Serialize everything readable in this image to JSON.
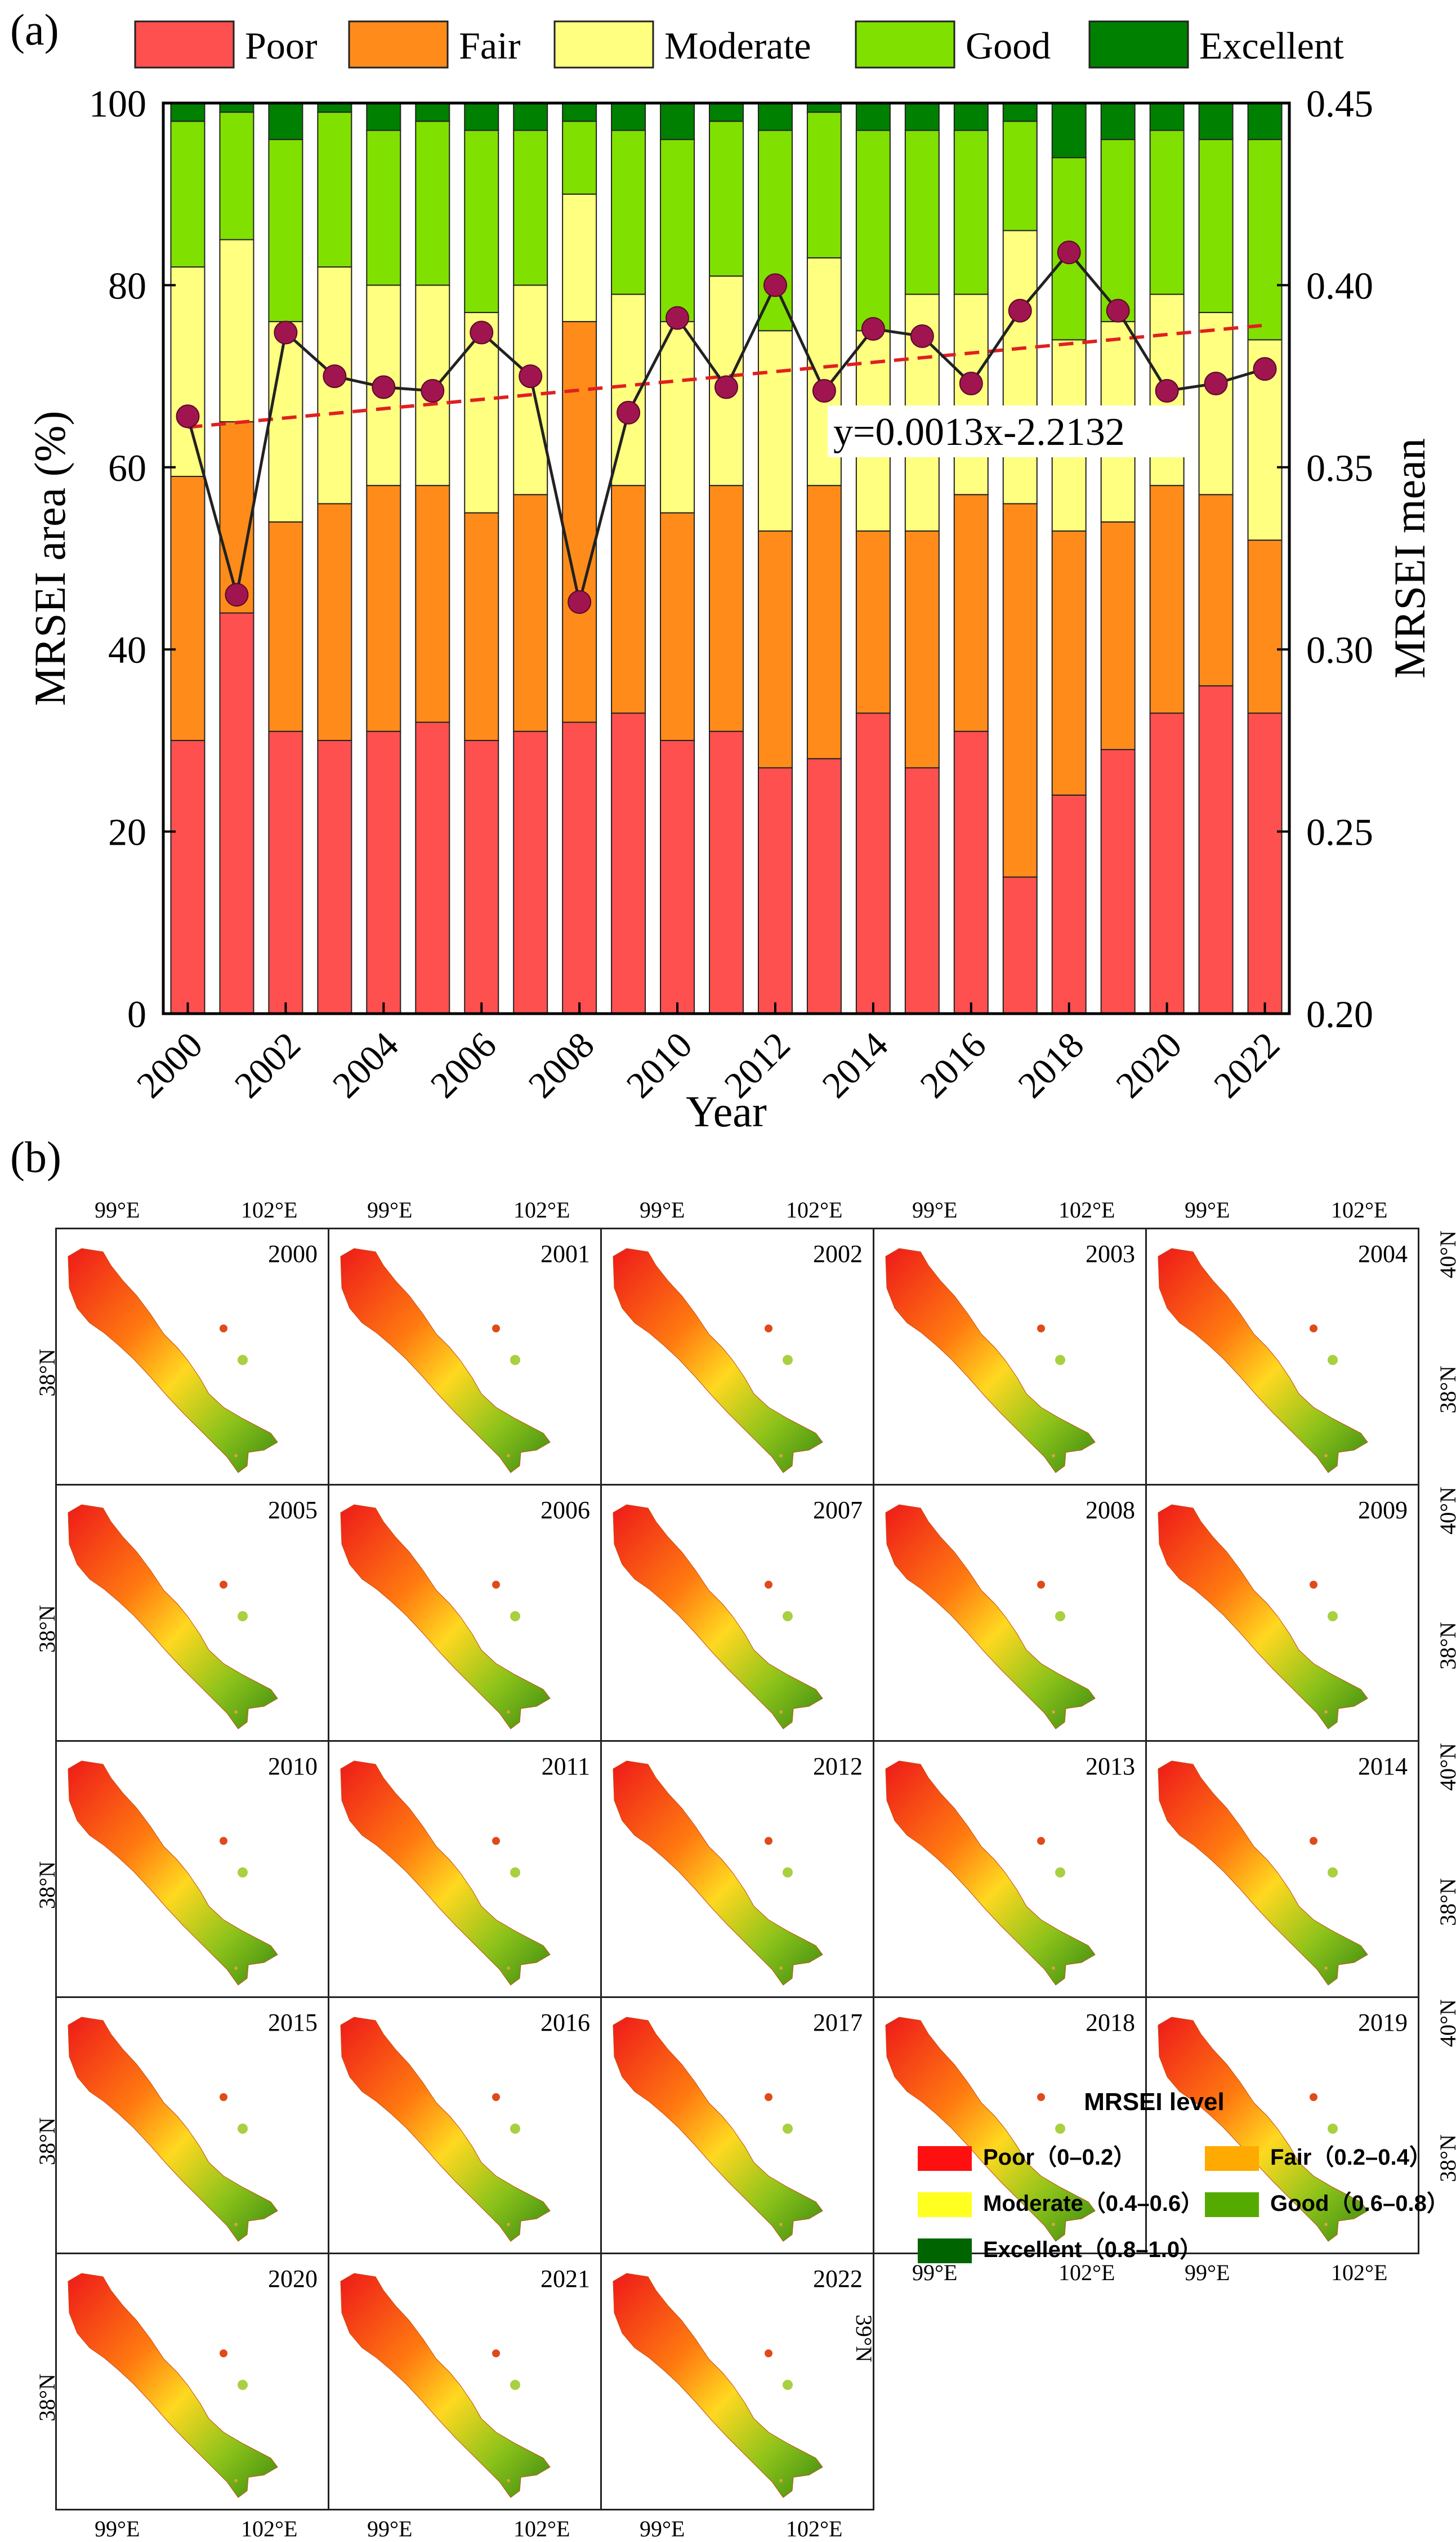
{
  "panel_a_label": "(a)",
  "panel_b_label": "(b)",
  "chart_data": {
    "type": "bar",
    "stacked": true,
    "categories": [
      "2000",
      "2001",
      "2002",
      "2003",
      "2004",
      "2005",
      "2006",
      "2007",
      "2008",
      "2009",
      "2010",
      "2011",
      "2012",
      "2013",
      "2014",
      "2015",
      "2016",
      "2017",
      "2018",
      "2019",
      "2020",
      "2021",
      "2022"
    ],
    "x_tick_labels": [
      "2000",
      "2002",
      "2004",
      "2006",
      "2008",
      "2010",
      "2012",
      "2014",
      "2016",
      "2018",
      "2020",
      "2022"
    ],
    "xlabel": "Year",
    "ylabel": "MRSEI area (%)",
    "ylim": [
      0,
      100
    ],
    "y_ticks": [
      "0",
      "20",
      "40",
      "60",
      "80",
      "100"
    ],
    "y2label": "MRSEI mean",
    "y2lim": [
      0.2,
      0.45
    ],
    "y2_ticks": [
      "0.20",
      "0.25",
      "0.30",
      "0.35",
      "0.40",
      "0.45"
    ],
    "legend_position": "top",
    "series": [
      {
        "name": "Poor",
        "color": "#ff5050",
        "values": [
          30,
          44,
          31,
          30,
          31,
          32,
          30,
          31,
          32,
          33,
          30,
          31,
          27,
          28,
          33,
          27,
          31,
          15,
          24,
          29,
          33,
          36,
          33
        ]
      },
      {
        "name": "Fair",
        "color": "#ff8c1a",
        "values": [
          29,
          21,
          23,
          26,
          27,
          26,
          25,
          26,
          44,
          25,
          25,
          27,
          26,
          30,
          20,
          26,
          26,
          41,
          29,
          25,
          25,
          21,
          19
        ]
      },
      {
        "name": "Moderate",
        "color": "#ffff80",
        "values": [
          23,
          20,
          22,
          26,
          22,
          22,
          22,
          23,
          14,
          21,
          21,
          23,
          22,
          25,
          22,
          26,
          22,
          30,
          21,
          22,
          21,
          20,
          22
        ]
      },
      {
        "name": "Good",
        "color": "#80e000",
        "values": [
          16,
          14,
          20,
          17,
          17,
          18,
          20,
          17,
          8,
          18,
          20,
          17,
          22,
          16,
          22,
          18,
          18,
          12,
          20,
          20,
          18,
          19,
          22
        ]
      },
      {
        "name": "Excellent",
        "color": "#008000",
        "values": [
          2,
          1,
          4,
          1,
          3,
          2,
          3,
          3,
          2,
          3,
          4,
          2,
          3,
          1,
          3,
          3,
          3,
          2,
          6,
          4,
          3,
          4,
          4
        ]
      }
    ],
    "mean_line": {
      "name": "MRSEI mean",
      "color": "#222222",
      "marker_color": "#a0154f",
      "values": [
        0.364,
        0.315,
        0.387,
        0.375,
        0.372,
        0.371,
        0.387,
        0.375,
        0.313,
        0.365,
        0.391,
        0.372,
        0.4,
        0.371,
        0.388,
        0.386,
        0.373,
        0.393,
        0.409,
        0.393,
        0.371,
        0.373,
        0.377
      ]
    },
    "trend_line": {
      "label": "y=0.0013x-2.2132",
      "color": "#e02020",
      "start_value": 0.361,
      "end_value": 0.389
    }
  },
  "maps": {
    "years": [
      "2000",
      "2001",
      "2002",
      "2003",
      "2004",
      "2005",
      "2006",
      "2007",
      "2008",
      "2009",
      "2010",
      "2011",
      "2012",
      "2013",
      "2014",
      "2015",
      "2016",
      "2017",
      "2018",
      "2019",
      "2020",
      "2021",
      "2022"
    ],
    "lon_labels": [
      "99°E",
      "102°E"
    ],
    "lat_labels": [
      "38°N",
      "40°N",
      "39°N"
    ]
  },
  "legend": {
    "title": "MRSEI level",
    "items": [
      {
        "label": "Poor（0–0.2）",
        "color": "#ff1010"
      },
      {
        "label": "Fair（0.2–0.4）",
        "color": "#ffaa00"
      },
      {
        "label": "Moderate（0.4–0.6）",
        "color": "#ffff20"
      },
      {
        "label": "Good（0.6–0.8）",
        "color": "#55aa00"
      },
      {
        "label": "Excellent（0.8–1.0）",
        "color": "#006400"
      }
    ]
  }
}
